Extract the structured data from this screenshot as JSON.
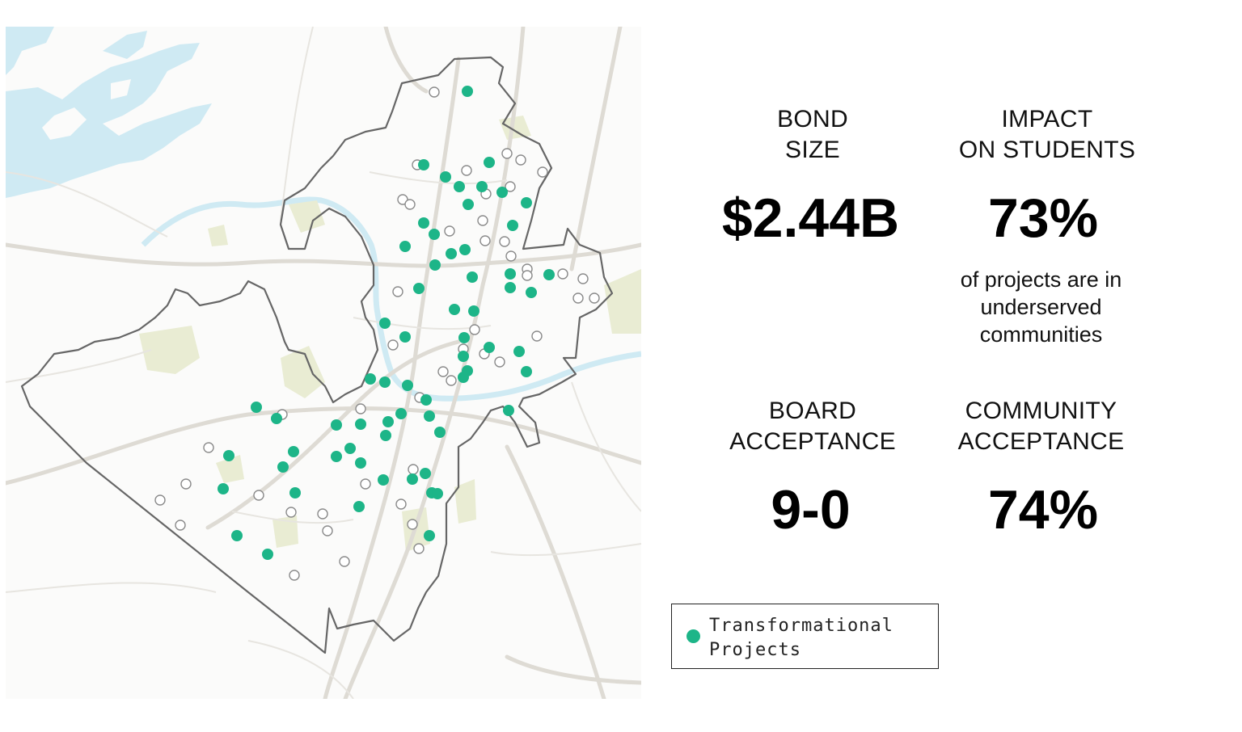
{
  "colors": {
    "project_dot": "#1db588",
    "open_dot_stroke": "#8a8a8a",
    "water": "#cfeaf3",
    "park": "#e9ecd3",
    "road": "#dedbd4",
    "boundary": "#666666"
  },
  "map": {
    "type": "district-boundary-map",
    "markers_legend_name": "Transformational Projects"
  },
  "stats": {
    "bond_size": {
      "heading_line1": "BOND",
      "heading_line2": "SIZE",
      "value": "$2.44B"
    },
    "impact": {
      "heading_line1": "IMPACT",
      "heading_line2": "ON STUDENTS",
      "value": "73%",
      "note_line1": "of projects are in",
      "note_line2": "underserved",
      "note_line3": "communities"
    },
    "board": {
      "heading_line1": "BOARD",
      "heading_line2": "ACCEPTANCE",
      "value": "9-0"
    },
    "community": {
      "heading_line1": "COMMUNITY",
      "heading_line2": "ACCEPTANCE",
      "value": "74%"
    }
  },
  "legend": {
    "label_line1": "Transformational",
    "label_line2": "Projects"
  }
}
